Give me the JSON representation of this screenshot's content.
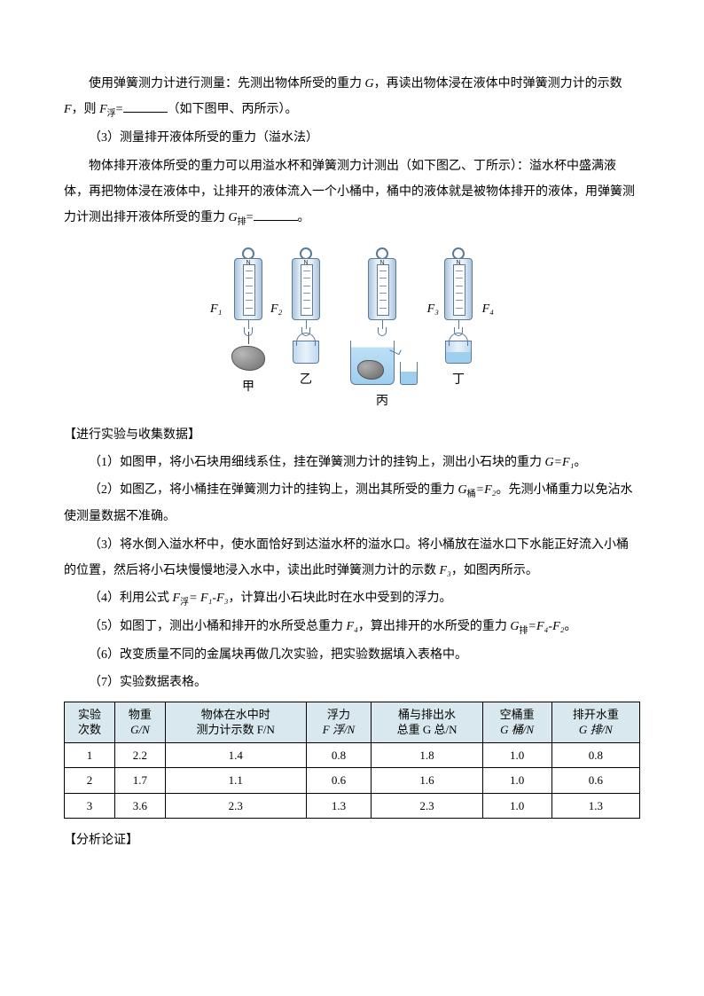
{
  "paragraphs": {
    "p1a": "使用弹簧测力计进行测量：先测出物体所受的重力 ",
    "p1b": "，再读出物体浸在液体中时弹簧测力计的示数 ",
    "p1c": "，则 ",
    "p1d": "（如下图甲、丙所示）。",
    "p2": "（3）测量排开液体所受的重力（溢水法）",
    "p3a": "物体排开液体所受的重力可以用溢水杯和弹簧测力计测出（如下图乙、丁所示）：溢水杯中盛满液体，再把物体浸在液体中，让排开的液体流入一个小桶中，桶中的液体就是被物体排开的液体，用弹簧测力计测出排开液体所受的重力 ",
    "p3b": "。",
    "h1": "【进行实验与收集数据】",
    "s1a": "（1）如图甲，将小石块用细线系住，挂在弹簧测力计的挂钩上，测出小石块的重力 ",
    "s1b": "。",
    "s2a": "（2）如图乙，将小桶挂在弹簧测力计的挂钩上，测出其所受的重力 ",
    "s2b": "。先测小桶重力以免沾水使测量数据不准确。",
    "s3a": "（3）将水倒入溢水杯中，使水面恰好到达溢水杯的溢水口。将小桶放在溢水口下水能正好流入小桶的位置，然后将小石块慢慢地浸入水中，读出此时弹簧测力计的示数 ",
    "s3b": "，如图丙所示。",
    "s4a": "（4）利用公式 ",
    "s4b": "，计算出小石块此时在水中受到的浮力。",
    "s5a": "（5）如图丁，测出小桶和排开的水所受总重力 ",
    "s5b": "，算出排开的水所受的重力 ",
    "s5c": "。",
    "s6": "（6）改变质量不同的金属块再做几次实验，把实验数据填入表格中。",
    "s7": "（7）实验数据表格。",
    "h2": "【分析论证】"
  },
  "symbols": {
    "G": "G",
    "F": "F",
    "Ffu": "F",
    "Ffu_sub": "浮",
    "eq": "=",
    "Gpai": "G",
    "Gpai_sub": "排",
    "GeqF1": "G=F₁",
    "Gtong": "G",
    "Gtong_sub": "桶",
    "eqF2": "=F₂",
    "F3": "F₃",
    "FfuEq": "F",
    "Ffu_sub2": "浮",
    "eqF1F3": "= F₁-F₃",
    "F4": "F₄",
    "GpaiEq": "G",
    "Gpai_sub2": "排",
    "eqF4F2": "=F₄-F₂"
  },
  "figure": {
    "labels": {
      "F1": "F₁",
      "F2": "F₂",
      "F3": "F₃",
      "F4": "F₄"
    },
    "captions": {
      "a": "甲",
      "b": "乙",
      "c": "丙",
      "d": "丁"
    },
    "scale_n": "N"
  },
  "table": {
    "headers": [
      {
        "l1": "实验",
        "l2": "次数"
      },
      {
        "l1": "物重",
        "l2": "G/N"
      },
      {
        "l1": "物体在水中时",
        "l2": "测力计示数 F/N"
      },
      {
        "l1": "浮力",
        "l2": "F 浮/N"
      },
      {
        "l1": "桶与排出水",
        "l2": "总重 G 总/N"
      },
      {
        "l1": "空桶重",
        "l2": "G 桶/N"
      },
      {
        "l1": "排开水重",
        "l2": "G 排/N"
      }
    ],
    "rows": [
      [
        "1",
        "2.2",
        "1.4",
        "0.8",
        "1.8",
        "1.0",
        "0.8"
      ],
      [
        "2",
        "1.7",
        "1.1",
        "0.6",
        "1.6",
        "1.0",
        "0.6"
      ],
      [
        "3",
        "3.6",
        "2.3",
        "1.3",
        "2.3",
        "1.0",
        "1.3"
      ]
    ],
    "header_bg": "#d8e8ee",
    "border_color": "#000000"
  }
}
